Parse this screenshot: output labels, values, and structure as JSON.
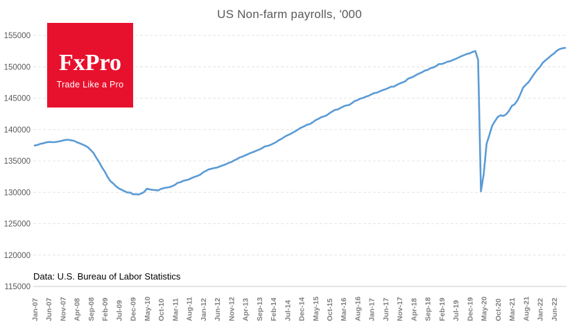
{
  "header": {
    "title": "US Non-farm payrolls, '000"
  },
  "logo": {
    "brand": "FxPro",
    "tagline": "Trade Like a Pro",
    "bg_color": "#e8112d",
    "text_color": "#ffffff"
  },
  "footer": {
    "source_note": "Data: U.S. Bureau of Labor Statistics"
  },
  "colors": {
    "line": "#5b9bd5",
    "gridline": "#e4e4e4",
    "axis_line": "#c9c9c9",
    "tick_label": "#7f7f7f",
    "y_label": "#595959",
    "title": "#595959"
  },
  "chart_data": {
    "type": "line",
    "title": "US Non-farm payrolls, '000",
    "unit": "thousands of jobs, monthly",
    "xlabel": "",
    "ylabel": "",
    "ylim": [
      115000,
      155000
    ],
    "y_ticks": [
      115000,
      120000,
      125000,
      130000,
      135000,
      140000,
      145000,
      150000,
      155000
    ],
    "grid": "horizontal-dashed",
    "legend": "none",
    "x_start": "Jan-07",
    "x_end": "Oct-22",
    "x_tick_interval_months": 5,
    "x_tick_labels": [
      "Jan-07",
      "Jun-07",
      "Nov-07",
      "Apr-08",
      "Sep-08",
      "Feb-09",
      "Jul-09",
      "Dec-09",
      "May-10",
      "Oct-10",
      "Mar-11",
      "Aug-11",
      "Jan-12",
      "Jun-12",
      "Nov-12",
      "Apr-13",
      "Sep-13",
      "Feb-14",
      "Jul-14",
      "Dec-14",
      "May-15",
      "Oct-15",
      "Mar-16",
      "Aug-16",
      "Jan-17",
      "Jun-17",
      "Nov-17",
      "Apr-18",
      "Sep-18",
      "Feb-19",
      "Jul-19",
      "Dec-19",
      "May-20",
      "Oct-20",
      "Mar-21",
      "Aug-21",
      "Jan-22",
      "Jun-22"
    ],
    "series": [
      {
        "name": "US Non-farm payrolls, '000",
        "color": "#5b9bd5",
        "monthly_values": [
          137448,
          137538,
          137720,
          137799,
          137943,
          138018,
          138002,
          137981,
          138051,
          138138,
          138253,
          138350,
          138365,
          138279,
          138199,
          137985,
          137803,
          137631,
          137421,
          137162,
          136711,
          136237,
          135481,
          134774,
          133976,
          133275,
          132449,
          131765,
          131411,
          130944,
          130617,
          130401,
          130174,
          129976,
          129970,
          129687,
          129705,
          129655,
          129811,
          130062,
          130578,
          130456,
          130395,
          130353,
          130296,
          130537,
          130674,
          130745,
          130815,
          130983,
          131195,
          131517,
          131619,
          131836,
          131942,
          132064,
          132285,
          132469,
          132613,
          132809,
          133172,
          133414,
          133657,
          133753,
          133866,
          133952,
          134112,
          134277,
          134448,
          134673,
          134817,
          135064,
          135261,
          135541,
          135682,
          135885,
          136084,
          136285,
          136434,
          136636,
          136800,
          137029,
          137312,
          137396,
          137539,
          137761,
          137985,
          138299,
          138530,
          138822,
          139074,
          139258,
          139523,
          139757,
          140045,
          140316,
          140504,
          140770,
          140854,
          141131,
          141470,
          141672,
          141947,
          142097,
          142247,
          142595,
          142852,
          143132,
          143199,
          143440,
          143676,
          143850,
          143893,
          144189,
          144532,
          144679,
          144928,
          145046,
          145231,
          145378,
          145610,
          145810,
          145881,
          146100,
          146268,
          146429,
          146618,
          146820,
          146837,
          147114,
          147325,
          147501,
          147676,
          148081,
          148264,
          148439,
          148709,
          148939,
          149117,
          149385,
          149493,
          149770,
          149885,
          150110,
          150429,
          150433,
          150580,
          150796,
          150881,
          151064,
          151257,
          151461,
          151669,
          151864,
          152040,
          152150,
          152360,
          152504,
          151090,
          130161,
          132912,
          137712,
          139112,
          140612,
          141332,
          142012,
          142276,
          142169,
          142435,
          142971,
          143747,
          144016,
          144630,
          145568,
          146658,
          147141,
          147565,
          148243,
          148890,
          149479,
          149950,
          150620,
          151020,
          151400,
          151790,
          152100,
          152550,
          152800,
          152950,
          153000
        ]
      }
    ]
  }
}
